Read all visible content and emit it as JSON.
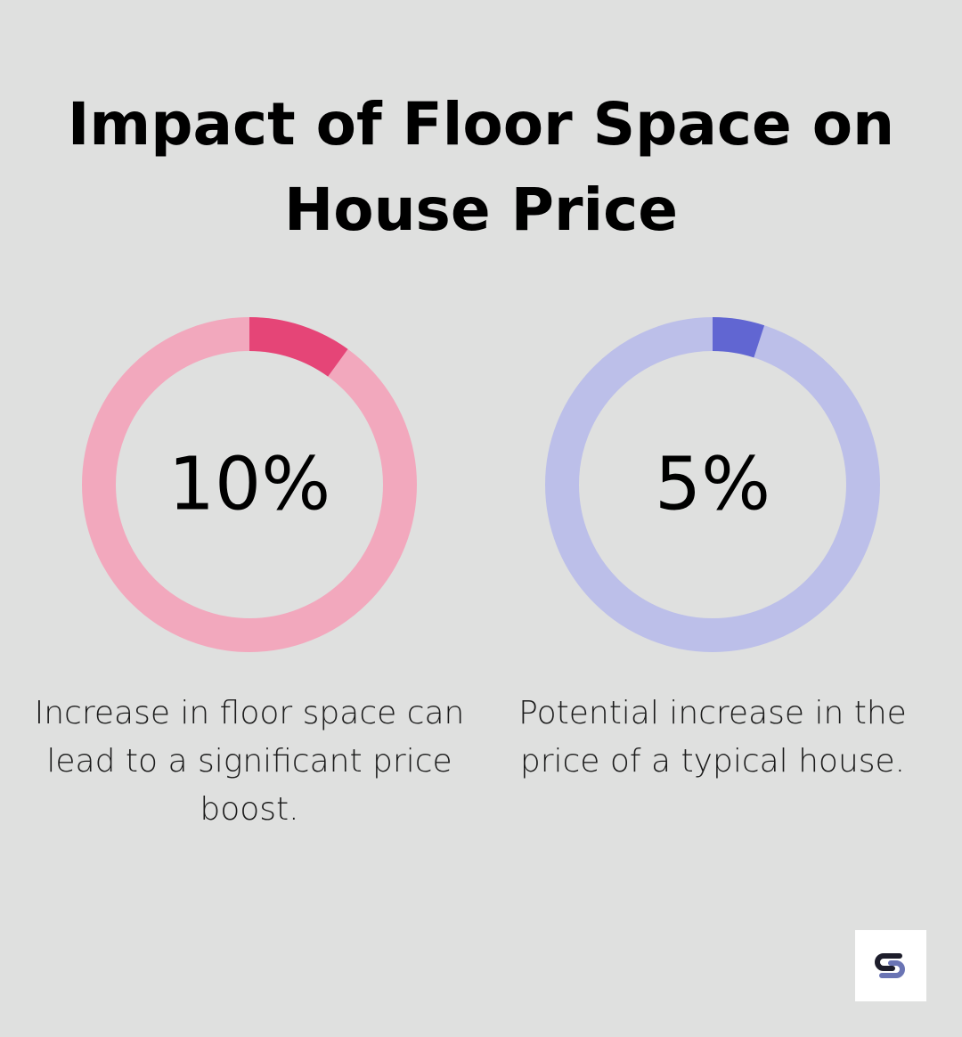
{
  "title": "Impact of Floor Space on House Price",
  "chart_data": [
    {
      "type": "pie",
      "value": 10,
      "max": 100,
      "label": "10%",
      "description": "Increase in floor space can lead to a significant price boost.",
      "colors": {
        "fill": "#e54577",
        "track": "#f2a8bd"
      }
    },
    {
      "type": "pie",
      "value": 5,
      "max": 100,
      "label": "5%",
      "description": "Potential increase in the price of a typical house.",
      "colors": {
        "fill": "#6166d2",
        "track": "#bcbfe9"
      }
    }
  ],
  "logo": {
    "icon": "brand-logo-icon"
  }
}
